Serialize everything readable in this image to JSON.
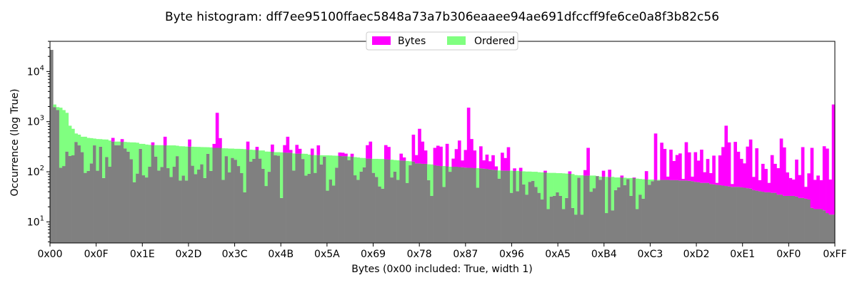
{
  "chart_data": {
    "type": "bar",
    "title": "Byte histogram: dff7ee95100ffaec5848a73a7b306eaaee94ae691dfccff9fe6ce0a8f3b82c56",
    "xlabel": "Bytes (0x00 included: True, width 1)",
    "ylabel": "Occurrence (log True)",
    "y_scale": "log",
    "ylim": [
      3.8,
      40000
    ],
    "xlim": [
      0,
      255
    ],
    "x_ticks": [
      "0x00",
      "0x0F",
      "0x1E",
      "0x2D",
      "0x3C",
      "0x4B",
      "0x5A",
      "0x69",
      "0x78",
      "0x87",
      "0x96",
      "0xA5",
      "0xB4",
      "0xC3",
      "0xD2",
      "0xE1",
      "0xF0",
      "0xFF"
    ],
    "x_tick_values": [
      0,
      15,
      30,
      45,
      60,
      75,
      90,
      105,
      120,
      135,
      150,
      165,
      180,
      195,
      210,
      225,
      240,
      255
    ],
    "y_ticks": [
      "10^1",
      "10^2",
      "10^3",
      "10^4"
    ],
    "y_tick_values": [
      10,
      100,
      1000,
      10000
    ],
    "legend": {
      "placement": "top-center",
      "entries": [
        "Bytes",
        "Ordered"
      ]
    },
    "colors": {
      "Bytes": "#ff00ff",
      "Ordered": "#80ff80",
      "overlap": "#808080"
    },
    "bytes_known": {
      "0": 27000,
      "3": 120,
      "4": 130,
      "54": 1500,
      "120": 720,
      "136": 1900
    },
    "series": [
      {
        "name": "Bytes",
        "values": []
      },
      {
        "name": "Ordered",
        "values": []
      }
    ]
  }
}
